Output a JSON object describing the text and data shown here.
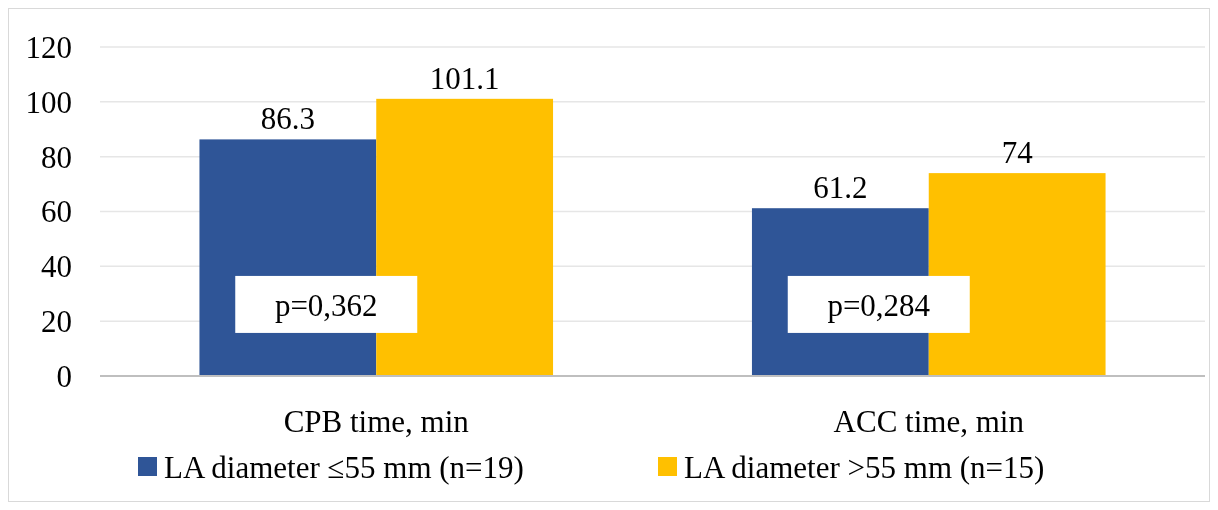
{
  "chart_data": {
    "type": "bar",
    "categories": [
      "CPB time, min",
      "ACC time, min"
    ],
    "series": [
      {
        "name": "LA diameter ≤55 mm (n=19)",
        "color": "#2f5597",
        "values": [
          86.3,
          61.2
        ]
      },
      {
        "name": "LA diameter >55 mm (n=15)",
        "color": "#ffc000",
        "values": [
          101.1,
          74
        ]
      }
    ],
    "ylim": [
      0,
      120
    ],
    "yticks": [
      0,
      20,
      40,
      60,
      80,
      100,
      120
    ],
    "grid": "y",
    "legend": "bottom",
    "data_labels": true,
    "annotations": [
      "p=0,362",
      "p=0,284"
    ]
  }
}
